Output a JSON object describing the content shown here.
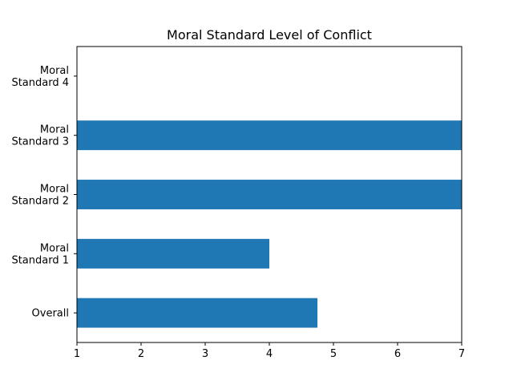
{
  "chart_data": {
    "type": "bar",
    "orientation": "horizontal",
    "title": "Moral Standard Level of Conflict",
    "xlabel": "",
    "ylabel": "",
    "categories": [
      [
        "Overall"
      ],
      [
        "Moral",
        "Standard 1"
      ],
      [
        "Moral",
        "Standard 2"
      ],
      [
        "Moral",
        "Standard 3"
      ],
      [
        "Moral",
        "Standard 4"
      ]
    ],
    "values": [
      4.75,
      4,
      7,
      7,
      1
    ],
    "xlim": [
      1,
      7
    ],
    "xticks": [
      "1",
      "2",
      "3",
      "4",
      "5",
      "6",
      "7"
    ],
    "grid": false,
    "legend": "none",
    "bar_color": "#1f77b4"
  }
}
